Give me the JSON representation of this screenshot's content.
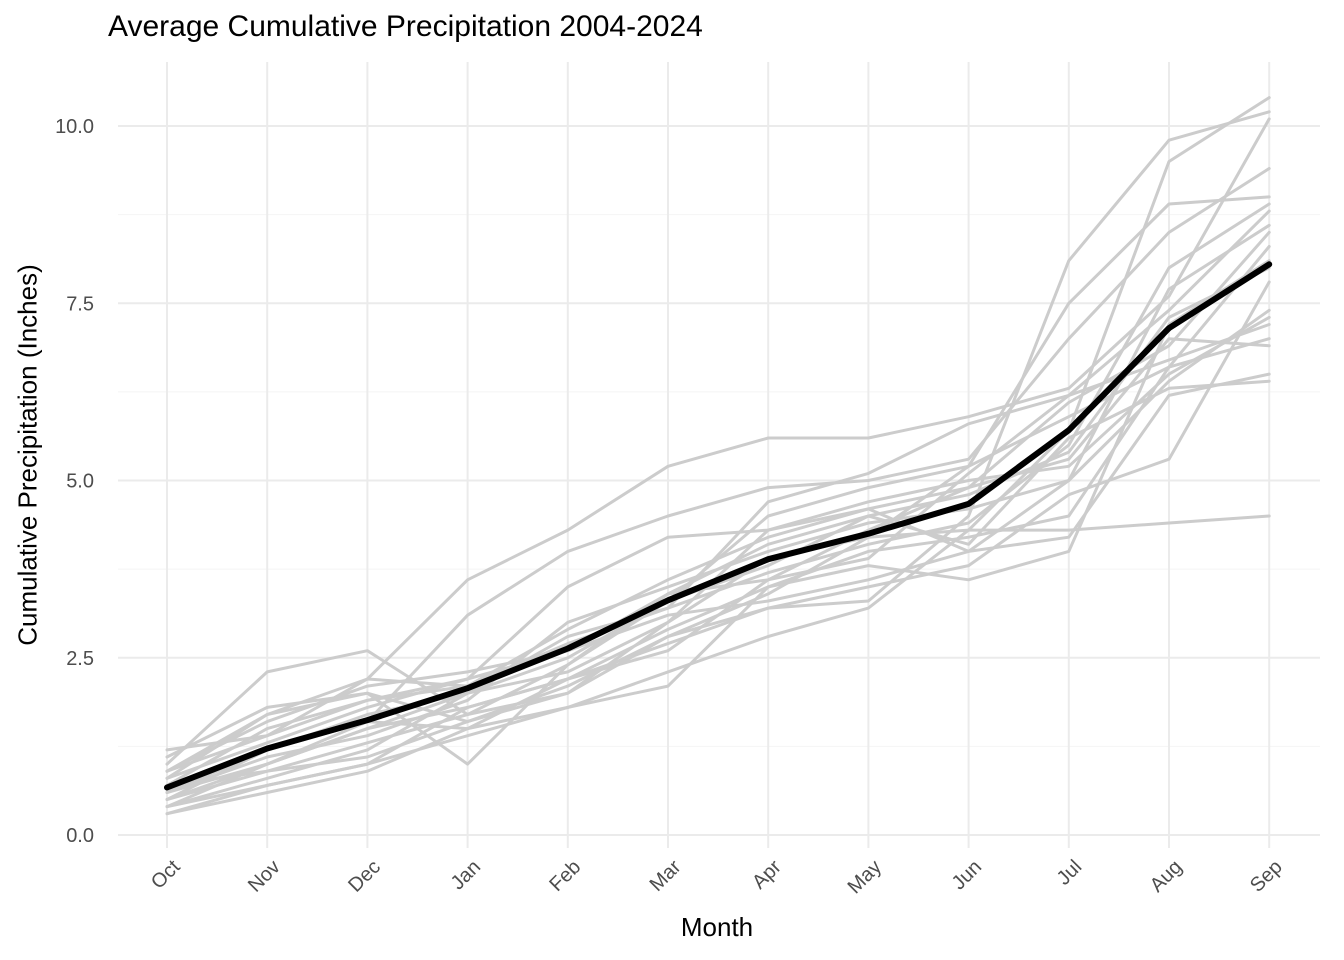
{
  "chart_data": {
    "type": "line",
    "title": "Average Cumulative Precipitation 2004-2024",
    "xlabel": "Month",
    "ylabel": "Cumulative Precipitation (Inches)",
    "categories": [
      "Oct",
      "Nov",
      "Dec",
      "Jan",
      "Feb",
      "Mar",
      "Apr",
      "May",
      "Jun",
      "Jul",
      "Aug",
      "Sep"
    ],
    "ylim": [
      -0.1,
      10.6
    ],
    "yticks": [
      0.0,
      2.5,
      5.0,
      7.5,
      10.0
    ],
    "ytick_labels": [
      "0.0",
      "2.5",
      "5.0",
      "7.5",
      "10.0"
    ],
    "grid": true,
    "legend": "none",
    "colors": {
      "years": "#cccccc",
      "average": "#000000",
      "grid": "#ebebeb",
      "tick_text": "#4d4d4d"
    },
    "series": [
      {
        "values": [
          0.3,
          0.6,
          0.9,
          1.5,
          1.8,
          2.3,
          2.8,
          3.2,
          4.3,
          5.7,
          9.5,
          10.4
        ]
      },
      {
        "values": [
          0.4,
          0.7,
          1.0,
          1.8,
          2.2,
          2.7,
          3.2,
          3.3,
          4.5,
          8.1,
          9.8,
          10.2
        ]
      },
      {
        "values": [
          0.5,
          0.9,
          1.1,
          1.6,
          2.0,
          2.8,
          3.4,
          4.2,
          5.2,
          7.5,
          8.9,
          9.0
        ]
      },
      {
        "values": [
          0.9,
          1.4,
          2.2,
          3.6,
          4.3,
          5.2,
          5.6,
          5.6,
          5.9,
          6.3,
          7.6,
          10.1
        ]
      },
      {
        "values": [
          0.6,
          1.2,
          1.6,
          3.1,
          4.0,
          4.5,
          4.9,
          5.0,
          5.3,
          7.0,
          8.5,
          9.4
        ]
      },
      {
        "values": [
          0.8,
          1.7,
          2.0,
          1.0,
          2.4,
          3.4,
          3.6,
          3.9,
          5.1,
          6.2,
          7.4,
          8.8
        ]
      },
      {
        "values": [
          1.0,
          2.3,
          2.6,
          1.7,
          2.0,
          3.0,
          4.3,
          4.6,
          4.9,
          6.1,
          6.9,
          8.5
        ]
      },
      {
        "values": [
          0.7,
          1.5,
          1.9,
          2.1,
          2.7,
          3.2,
          3.7,
          4.1,
          4.4,
          5.5,
          8.0,
          8.9
        ]
      },
      {
        "values": [
          0.5,
          1.0,
          1.5,
          1.8,
          2.2,
          2.9,
          3.5,
          4.0,
          4.2,
          4.5,
          6.6,
          8.3
        ]
      },
      {
        "values": [
          0.4,
          0.8,
          1.2,
          2.0,
          2.5,
          3.3,
          3.8,
          4.5,
          4.8,
          5.4,
          7.3,
          8.0
        ]
      },
      {
        "values": [
          0.6,
          1.1,
          1.4,
          1.9,
          3.0,
          3.5,
          4.0,
          4.4,
          4.6,
          5.0,
          6.4,
          7.4
        ]
      },
      {
        "values": [
          0.8,
          1.3,
          1.8,
          2.2,
          3.5,
          4.2,
          4.3,
          4.7,
          5.0,
          5.2,
          6.5,
          7.3
        ]
      },
      {
        "values": [
          0.9,
          1.6,
          2.1,
          2.3,
          2.6,
          3.1,
          3.3,
          3.6,
          4.0,
          4.2,
          6.2,
          6.5
        ]
      },
      {
        "values": [
          1.1,
          1.8,
          2.0,
          1.6,
          2.1,
          2.8,
          3.2,
          3.5,
          3.8,
          4.8,
          5.3,
          7.8
        ]
      },
      {
        "values": [
          0.3,
          0.7,
          1.0,
          1.4,
          1.8,
          2.1,
          3.5,
          3.8,
          3.6,
          4.0,
          7.2,
          8.1
        ]
      },
      {
        "values": [
          0.5,
          1.2,
          1.7,
          2.0,
          2.3,
          3.0,
          3.9,
          4.2,
          4.3,
          4.3,
          4.4,
          4.5
        ]
      },
      {
        "values": [
          0.7,
          0.9,
          1.3,
          1.7,
          2.4,
          3.3,
          4.5,
          4.9,
          5.2,
          5.9,
          6.6,
          7.0
        ]
      },
      {
        "values": [
          0.6,
          1.0,
          1.5,
          2.0,
          2.8,
          3.2,
          4.7,
          5.1,
          5.8,
          6.2,
          6.7,
          7.2
        ]
      },
      {
        "values": [
          1.2,
          1.4,
          1.9,
          2.2,
          2.6,
          3.4,
          4.1,
          4.5,
          4.1,
          5.6,
          6.3,
          6.4
        ]
      },
      {
        "values": [
          0.4,
          1.0,
          1.6,
          1.5,
          2.2,
          2.6,
          3.6,
          4.3,
          4.9,
          5.3,
          7.0,
          6.9
        ]
      },
      {
        "values": [
          0.9,
          1.7,
          2.2,
          2.1,
          2.9,
          3.6,
          4.2,
          4.6,
          4.0,
          5.0,
          7.7,
          8.6
        ]
      }
    ],
    "average": {
      "values": [
        0.67,
        1.22,
        1.62,
        2.07,
        2.63,
        3.31,
        3.89,
        4.25,
        4.67,
        5.71,
        7.15,
        8.05
      ]
    }
  }
}
